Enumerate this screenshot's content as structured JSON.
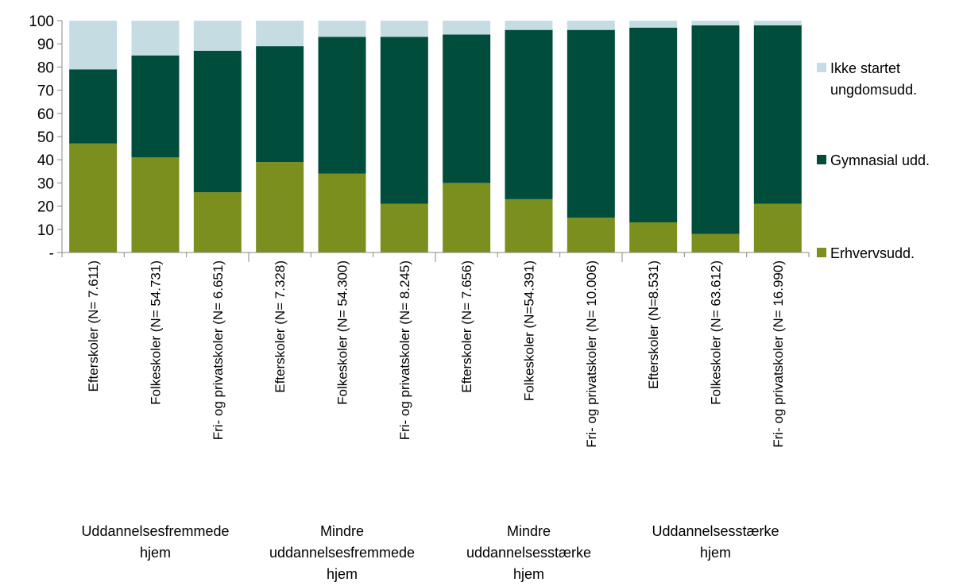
{
  "chart_data": {
    "type": "bar",
    "stacked": true,
    "ylim": [
      0,
      100
    ],
    "y_ticks": [
      "-",
      "10",
      "20",
      "30",
      "40",
      "50",
      "60",
      "70",
      "80",
      "90",
      "100"
    ],
    "grid": false,
    "legend_position": "right",
    "categories": [
      "Efterskoler (N= 7.611)",
      "Folkeskoler (N= 54.731)",
      "Fri- og privatskoler (N= 6.651)",
      "Efterskoler (N= 7.328)",
      "Folkeskoler (N= 54.300)",
      "Fri- og privatskoler (N= 8.245)",
      "Efterskoler (N= 7.656)",
      "Folkeskoler (N=54.391)",
      "Fri- og privatskoler (N= 10.006)",
      "Efterskoler (N=8.531)",
      "Folkeskoler (N= 63.612)",
      "Fri- og privatskoler (N= 16.990)"
    ],
    "groups": [
      {
        "label_lines": [
          "Uddannelsesfremmede",
          "hjem"
        ],
        "span": 3
      },
      {
        "label_lines": [
          "Mindre",
          "uddannelsesfremmede",
          "hjem"
        ],
        "span": 3
      },
      {
        "label_lines": [
          "Mindre",
          "uddannelsesstærke",
          "hjem"
        ],
        "span": 3
      },
      {
        "label_lines": [
          "Uddannelsesstærke",
          "hjem"
        ],
        "span": 3
      }
    ],
    "series": [
      {
        "name": "Erhvervsudd.",
        "color": "#7a8f1e",
        "values": [
          47,
          41,
          26,
          39,
          34,
          21,
          30,
          23,
          15,
          13,
          8,
          21
        ]
      },
      {
        "name": "Gymnasial udd.",
        "color": "#004d3b",
        "values": [
          32,
          44,
          61,
          50,
          59,
          72,
          64,
          73,
          81,
          84,
          90,
          77
        ]
      },
      {
        "name": "Ikke startet ungdomsudd.",
        "color": "#c5dce3",
        "values": [
          21,
          15,
          13,
          11,
          7,
          7,
          6,
          4,
          4,
          3,
          2,
          2
        ]
      }
    ],
    "legend": [
      {
        "series": 2,
        "label_lines": [
          "Ikke startet",
          "ungdomsudd."
        ]
      },
      {
        "series": 1,
        "label_lines": [
          "Gymnasial udd."
        ]
      },
      {
        "series": 0,
        "label_lines": [
          "Erhvervsudd."
        ]
      }
    ]
  }
}
